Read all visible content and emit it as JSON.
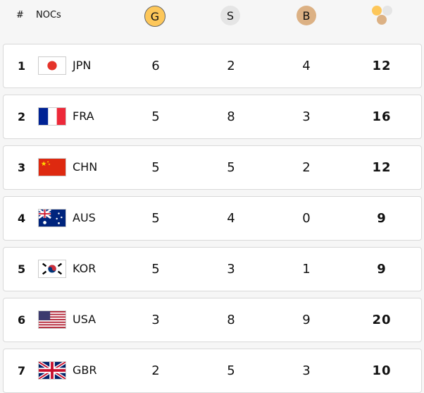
{
  "header": {
    "rank": "#",
    "noc": "NOCs",
    "gold": "G",
    "silver": "S",
    "bronze": "B",
    "total_icon": "medals-total-icon"
  },
  "colors": {
    "gold": "#fdc75a",
    "silver": "#e5e5e5",
    "bronze": "#dcb184"
  },
  "rows": [
    {
      "rank": "1",
      "code": "JPN",
      "flag": "japan",
      "gold": "6",
      "silver": "2",
      "bronze": "4",
      "total": "12"
    },
    {
      "rank": "2",
      "code": "FRA",
      "flag": "france",
      "gold": "5",
      "silver": "8",
      "bronze": "3",
      "total": "16"
    },
    {
      "rank": "3",
      "code": "CHN",
      "flag": "china",
      "gold": "5",
      "silver": "5",
      "bronze": "2",
      "total": "12"
    },
    {
      "rank": "4",
      "code": "AUS",
      "flag": "australia",
      "gold": "5",
      "silver": "4",
      "bronze": "0",
      "total": "9"
    },
    {
      "rank": "5",
      "code": "KOR",
      "flag": "korea",
      "gold": "5",
      "silver": "3",
      "bronze": "1",
      "total": "9"
    },
    {
      "rank": "6",
      "code": "USA",
      "flag": "usa",
      "gold": "3",
      "silver": "8",
      "bronze": "9",
      "total": "20"
    },
    {
      "rank": "7",
      "code": "GBR",
      "flag": "uk",
      "gold": "2",
      "silver": "5",
      "bronze": "3",
      "total": "10"
    }
  ]
}
